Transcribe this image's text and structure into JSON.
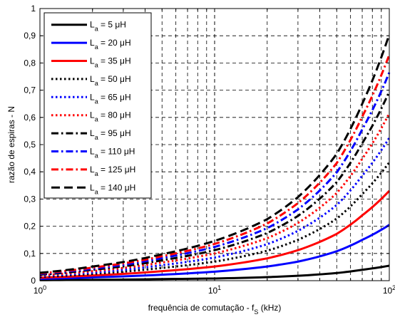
{
  "chart_data": {
    "type": "line",
    "xscale": "log",
    "xlim": [
      1,
      100
    ],
    "ylim": [
      0,
      1
    ],
    "grid": true,
    "legend_position": "top-left",
    "xlabel": {
      "main": "frequência de comutação - f",
      "sub": "S",
      "tail": " (kHz)"
    },
    "ylabel": "razão de espiras - N",
    "x_ticks": [
      {
        "base": "10",
        "exp": "0"
      },
      {
        "base": "10",
        "exp": "1"
      },
      {
        "base": "10",
        "exp": "2"
      }
    ],
    "y_ticks": [
      "0",
      "0,1",
      "0,2",
      "0,3",
      "0,4",
      "0,5",
      "0,6",
      "0,7",
      "0,8",
      "0,9",
      "1"
    ],
    "x": [
      1,
      2,
      5,
      10,
      20,
      30,
      50,
      70,
      100
    ],
    "series": [
      {
        "name": "L_a = 5 μH",
        "label_sym": "L",
        "label_sub": "a",
        "label_rest": " =   5 μH",
        "color": "#000000",
        "style": "solid",
        "values": [
          0.002,
          0.003,
          0.006,
          0.008,
          0.013,
          0.018,
          0.028,
          0.04,
          0.055
        ]
      },
      {
        "name": "L_a = 20 μH",
        "label_sym": "L",
        "label_sub": "a",
        "label_rest": " =  20 μH",
        "color": "#0000ff",
        "style": "solid",
        "values": [
          0.007,
          0.012,
          0.022,
          0.033,
          0.052,
          0.07,
          0.108,
          0.15,
          0.205
        ]
      },
      {
        "name": "L_a = 35 μH",
        "label_sym": "L",
        "label_sub": "a",
        "label_rest": " =  35 μH",
        "color": "#ff0000",
        "style": "solid",
        "values": [
          0.011,
          0.019,
          0.035,
          0.052,
          0.082,
          0.112,
          0.172,
          0.24,
          0.33
        ]
      },
      {
        "name": "L_a = 50 μH",
        "label_sym": "L",
        "label_sub": "a",
        "label_rest": " =  50 μH",
        "color": "#000000",
        "style": "dotted",
        "values": [
          0.014,
          0.025,
          0.047,
          0.07,
          0.11,
          0.15,
          0.228,
          0.318,
          0.435
        ]
      },
      {
        "name": "L_a = 65 μH",
        "label_sym": "L",
        "label_sub": "a",
        "label_rest": " =  65 μH",
        "color": "#0000ff",
        "style": "dotted",
        "values": [
          0.017,
          0.03,
          0.057,
          0.085,
          0.134,
          0.183,
          0.278,
          0.386,
          0.525
        ]
      },
      {
        "name": "L_a = 80 μH",
        "label_sym": "L",
        "label_sub": "a",
        "label_rest": " =  80 μH",
        "color": "#ff0000",
        "style": "dotted",
        "values": [
          0.02,
          0.035,
          0.067,
          0.1,
          0.156,
          0.212,
          0.322,
          0.448,
          0.615
        ]
      },
      {
        "name": "L_a = 95 μH",
        "label_sym": "L",
        "label_sub": "a",
        "label_rest": " =  95 μH",
        "color": "#000000",
        "style": "dashdot",
        "values": [
          0.022,
          0.04,
          0.075,
          0.112,
          0.175,
          0.238,
          0.362,
          0.505,
          0.695
        ]
      },
      {
        "name": "L_a = 110 μH",
        "label_sym": "L",
        "label_sub": "a",
        "label_rest": " = 110 μH",
        "color": "#0000ff",
        "style": "dashdot",
        "values": [
          0.025,
          0.044,
          0.083,
          0.124,
          0.193,
          0.262,
          0.398,
          0.556,
          0.765
        ]
      },
      {
        "name": "L_a = 125 μH",
        "label_sym": "L",
        "label_sub": "a",
        "label_rest": " = 125 μH",
        "color": "#ff0000",
        "style": "dashdot",
        "values": [
          0.027,
          0.048,
          0.09,
          0.135,
          0.21,
          0.285,
          0.432,
          0.603,
          0.83
        ]
      },
      {
        "name": "L_a = 140 μH",
        "label_sym": "L",
        "label_sub": "a",
        "label_rest": " = 140 μH",
        "color": "#000000",
        "style": "dashed",
        "values": [
          0.029,
          0.052,
          0.097,
          0.146,
          0.226,
          0.307,
          0.466,
          0.65,
          0.905
        ]
      }
    ]
  }
}
